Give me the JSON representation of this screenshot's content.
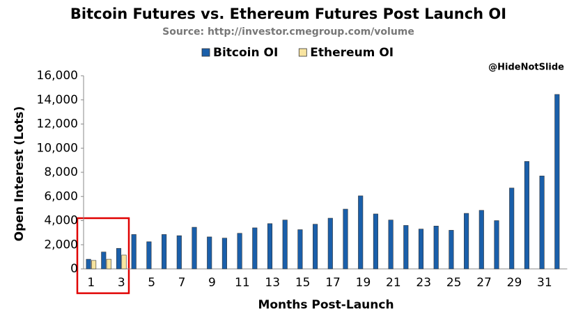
{
  "chart_data": {
    "type": "bar",
    "title": "Bitcoin Futures vs. Ethereum Futures Post Launch OI",
    "subtitle": "Source: http://investor.cmegroup.com/volume",
    "annotation": "@HideNotSlide",
    "x_label": "Months Post-Launch",
    "y_label": "Open Interest (Lots)",
    "categories": [
      "1",
      null,
      "3",
      null,
      "5",
      null,
      "7",
      null,
      "9",
      null,
      "11",
      null,
      "13",
      null,
      "15",
      null,
      "17",
      null,
      "19",
      null,
      "21",
      null,
      "23",
      null,
      "25",
      null,
      "27",
      null,
      "29",
      null,
      "31",
      null
    ],
    "series": [
      {
        "name": "Bitcoin OI",
        "color": "#1a5faa",
        "values": [
          800,
          1400,
          1700,
          2850,
          2250,
          2850,
          2750,
          3450,
          2650,
          2550,
          2950,
          3400,
          3750,
          4050,
          3250,
          3700,
          4200,
          4950,
          6050,
          4550,
          4050,
          3600,
          3300,
          3550,
          3200,
          4600,
          4850,
          4000,
          6700,
          8900,
          7700,
          14450
        ]
      },
      {
        "name": "Ethereum OI",
        "color": "#f8e4a0",
        "values": [
          700,
          800,
          1150,
          null,
          null,
          null,
          null,
          null,
          null,
          null,
          null,
          null,
          null,
          null,
          null,
          null,
          null,
          null,
          null,
          null,
          null,
          null,
          null,
          null,
          null,
          null,
          null,
          null,
          null,
          null,
          null,
          null
        ]
      }
    ],
    "ylim": [
      0,
      16000
    ],
    "yticks": [
      0,
      {
        "value": 2000,
        "label": "2,000"
      },
      {
        "value": 4000,
        "label": "4,000"
      },
      {
        "value": 6000,
        "label": "6,000"
      },
      {
        "value": 8000,
        "label": "8,000"
      },
      {
        "value": 10000,
        "label": "10,000"
      },
      {
        "value": 12000,
        "label": "12,000"
      },
      {
        "value": 14000,
        "label": "14,000"
      },
      {
        "value": 16000,
        "label": "16,000"
      }
    ],
    "grid": false
  }
}
